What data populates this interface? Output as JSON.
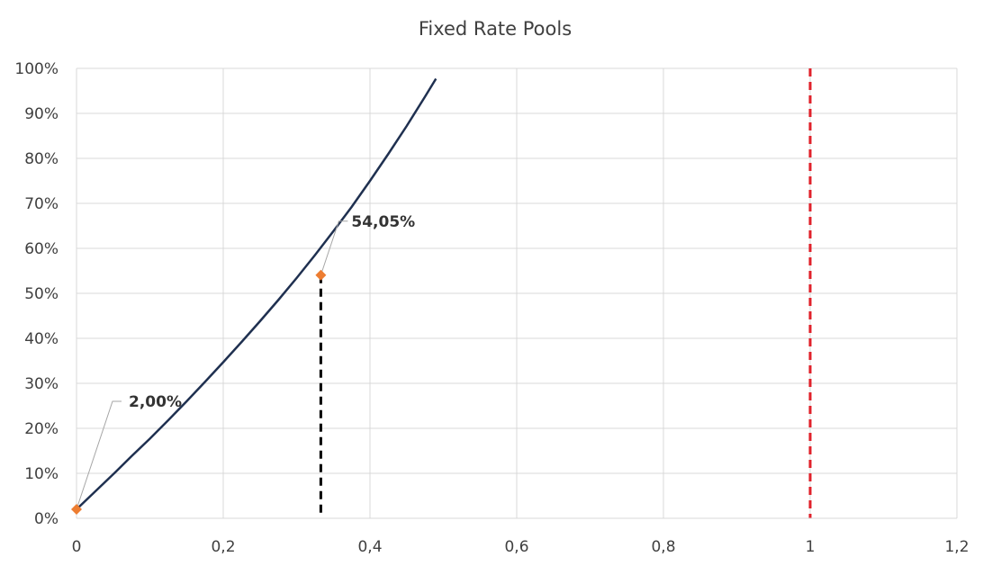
{
  "chart_data": {
    "type": "line",
    "title": "Fixed Rate Pools",
    "xlabel": "",
    "ylabel": "",
    "xlim": [
      0,
      1.2
    ],
    "ylim": [
      0,
      1.0
    ],
    "x_ticks": [
      0,
      0.2,
      0.4,
      0.6,
      0.8,
      1.0,
      1.2
    ],
    "x_tick_labels": [
      "0",
      "0,2",
      "0,4",
      "0,6",
      "0,8",
      "1",
      "1,2"
    ],
    "y_ticks": [
      0,
      0.1,
      0.2,
      0.3,
      0.4,
      0.5,
      0.6,
      0.7,
      0.8,
      0.9,
      1.0
    ],
    "y_tick_labels": [
      "0%",
      "10%",
      "20%",
      "30%",
      "40%",
      "50%",
      "60%",
      "70%",
      "80%",
      "90%",
      "100%"
    ],
    "grid": true,
    "series": [
      {
        "color": "#1f3050",
        "x": [
          0,
          0.025,
          0.05,
          0.075,
          0.1,
          0.125,
          0.15,
          0.175,
          0.2,
          0.225,
          0.25,
          0.275,
          0.3,
          0.325,
          0.35,
          0.375,
          0.4,
          0.425,
          0.45,
          0.475,
          0.49
        ],
        "y": [
          0.02,
          0.059,
          0.098,
          0.138,
          0.177,
          0.218,
          0.26,
          0.303,
          0.347,
          0.392,
          0.438,
          0.485,
          0.534,
          0.585,
          0.638,
          0.692,
          0.75,
          0.81,
          0.872,
          0.937,
          0.977
        ]
      }
    ],
    "points": [
      {
        "x": 0,
        "y": 0.02,
        "label": "2,00%",
        "color": "#ed7d31"
      },
      {
        "x": 0.333,
        "y": 0.5405,
        "label": "54,05%",
        "color": "#ed7d31"
      }
    ],
    "vlines": [
      {
        "x": 0.333,
        "y_top": 0.5405,
        "color": "#000000",
        "style": "dashed"
      },
      {
        "x": 1.0,
        "color": "#e0202a",
        "style": "dashed"
      }
    ]
  }
}
